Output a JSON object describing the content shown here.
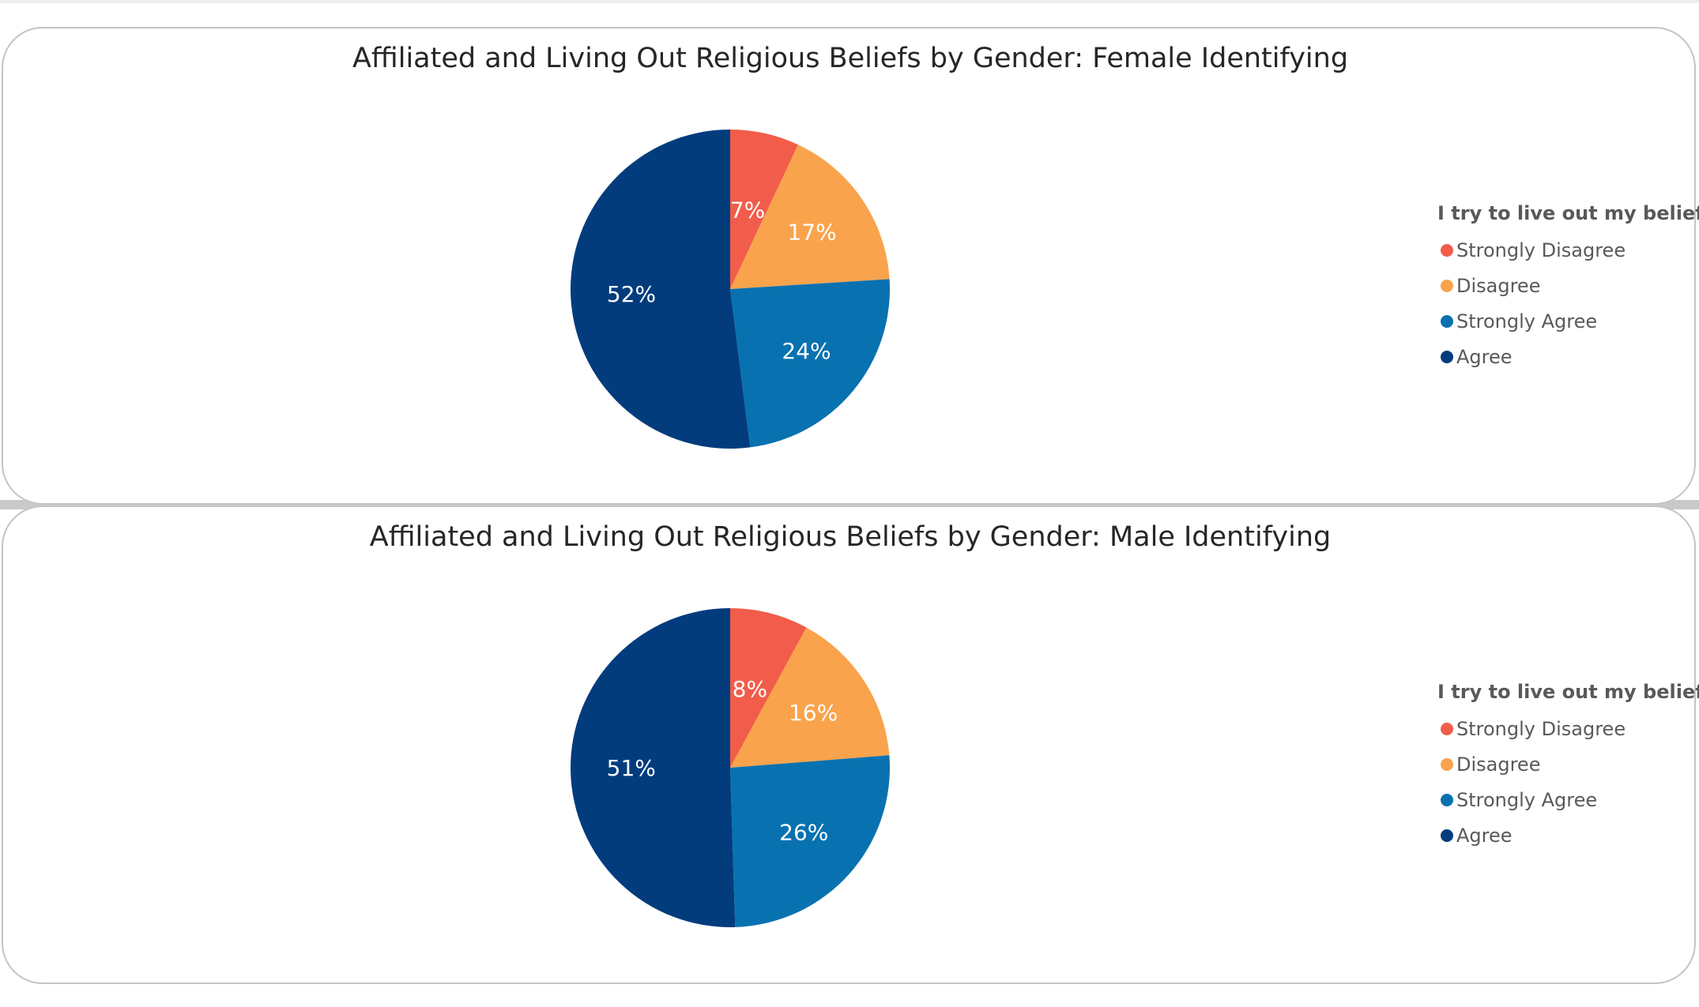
{
  "chart_data": [
    {
      "type": "pie",
      "title": "Affiliated and Living Out Religious Beliefs by Gender: Female Identifying",
      "legend_title": "I try to live out my beliefs",
      "legend_position": "right",
      "categories": [
        "Strongly Disagree",
        "Disagree",
        "Strongly Agree",
        "Agree"
      ],
      "values": [
        7,
        17,
        24,
        52
      ],
      "labels": [
        "7%",
        "17%",
        "24%",
        "52%"
      ],
      "colors": [
        "#f15d4a",
        "#f9a34d",
        "#0872b0",
        "#023c7d"
      ]
    },
    {
      "type": "pie",
      "title": "Affiliated and Living Out Religious Beliefs by Gender: Male Identifying",
      "legend_title": "I try to live out my beliefs",
      "legend_position": "right",
      "categories": [
        "Strongly Disagree",
        "Disagree",
        "Strongly Agree",
        "Agree"
      ],
      "values": [
        8,
        16,
        26,
        51
      ],
      "labels": [
        "8%",
        "16%",
        "26%",
        "51%"
      ],
      "colors": [
        "#f15d4a",
        "#f9a34d",
        "#0872b0",
        "#023c7d"
      ]
    }
  ]
}
